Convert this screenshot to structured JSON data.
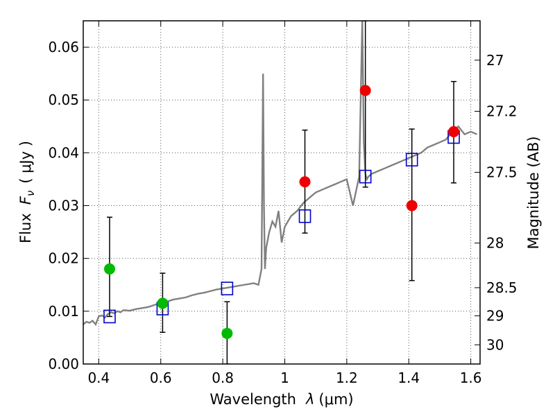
{
  "chart_data": {
    "type": "scatter",
    "xlabel_prefix": "Wavelength",
    "xlabel_symbol": "λ",
    "xlabel_unit": "(μm)",
    "ylabel_prefix": "Flux",
    "ylabel_symbol": "F",
    "ylabel_subscript": "ν",
    "ylabel_unit": "( μJy )",
    "y2label": "Magnitude (AB)",
    "xlim": [
      0.35,
      1.63
    ],
    "ylim": [
      0.0,
      0.065
    ],
    "grid": true,
    "x_ticks": [
      0.4,
      0.6,
      0.8,
      1.0,
      1.2,
      1.4,
      1.6
    ],
    "x_tick_labels": [
      "0.4",
      "0.6",
      "0.8",
      "1",
      "1.2",
      "1.4",
      "1.6"
    ],
    "y_ticks": [
      0.0,
      0.01,
      0.02,
      0.03,
      0.04,
      0.05,
      0.06
    ],
    "y_tick_labels": [
      "0.00",
      "0.01",
      "0.02",
      "0.03",
      "0.04",
      "0.05",
      "0.06"
    ],
    "y2_tick_labels": [
      "27",
      "27.2",
      "27.5",
      "28",
      "28.5",
      "29",
      "30"
    ],
    "colors": {
      "template": "#808080",
      "model": "#0000cc",
      "optical": "#00bb00",
      "nir": "#ee0000",
      "errorbar": "#000000"
    },
    "series": [
      {
        "kind": "template_spectrum",
        "x": [
          0.35,
          0.36,
          0.37,
          0.38,
          0.39,
          0.4,
          0.41,
          0.42,
          0.43,
          0.44,
          0.45,
          0.46,
          0.47,
          0.48,
          0.5,
          0.52,
          0.54,
          0.56,
          0.58,
          0.6,
          0.62,
          0.64,
          0.66,
          0.68,
          0.7,
          0.72,
          0.74,
          0.76,
          0.78,
          0.8,
          0.82,
          0.84,
          0.86,
          0.88,
          0.9,
          0.915,
          0.925,
          0.93,
          0.933,
          0.936,
          0.94,
          0.95,
          0.96,
          0.97,
          0.98,
          0.99,
          1.0,
          1.02,
          1.04,
          1.06,
          1.08,
          1.1,
          1.12,
          1.14,
          1.16,
          1.18,
          1.2,
          1.22,
          1.24,
          1.25,
          1.255,
          1.26,
          1.265,
          1.27,
          1.28,
          1.3,
          1.32,
          1.34,
          1.36,
          1.38,
          1.4,
          1.42,
          1.44,
          1.46,
          1.48,
          1.5,
          1.52,
          1.54,
          1.56,
          1.58,
          1.6,
          1.62
        ],
        "y": [
          0.0075,
          0.008,
          0.0078,
          0.0082,
          0.0075,
          0.009,
          0.0092,
          0.0088,
          0.0095,
          0.0098,
          0.0096,
          0.01,
          0.0098,
          0.0102,
          0.0101,
          0.0104,
          0.0106,
          0.0108,
          0.0112,
          0.0116,
          0.0118,
          0.0122,
          0.0124,
          0.0126,
          0.013,
          0.0133,
          0.0135,
          0.0138,
          0.0141,
          0.0143,
          0.0145,
          0.0147,
          0.0149,
          0.0151,
          0.0153,
          0.015,
          0.018,
          0.055,
          0.03,
          0.018,
          0.022,
          0.025,
          0.027,
          0.026,
          0.029,
          0.023,
          0.026,
          0.028,
          0.029,
          0.0305,
          0.0315,
          0.0325,
          0.033,
          0.0335,
          0.034,
          0.0345,
          0.035,
          0.03,
          0.0355,
          0.065,
          0.042,
          0.036,
          0.035,
          0.0355,
          0.036,
          0.0365,
          0.037,
          0.0375,
          0.038,
          0.0385,
          0.039,
          0.0395,
          0.04,
          0.041,
          0.0415,
          0.042,
          0.0425,
          0.044,
          0.045,
          0.0435,
          0.044,
          0.0435
        ]
      },
      {
        "kind": "model_photometry",
        "x": [
          0.435,
          0.606,
          0.814,
          1.065,
          1.26,
          1.41,
          1.545
        ],
        "y": [
          0.009,
          0.0105,
          0.0143,
          0.028,
          0.0355,
          0.0387,
          0.043
        ]
      },
      {
        "kind": "observed_optical",
        "x": [
          0.435,
          0.606,
          0.814
        ],
        "y": [
          0.018,
          0.0115,
          0.0058
        ],
        "err_low": [
          0.009,
          0.0055,
          0.0058
        ],
        "err_high": [
          0.0098,
          0.0057,
          0.006
        ]
      },
      {
        "kind": "observed_nir",
        "x": [
          1.065,
          1.26,
          1.41,
          1.545
        ],
        "y": [
          0.0345,
          0.0518,
          0.03,
          0.044
        ],
        "err_low": [
          0.0097,
          0.0183,
          0.0142,
          0.0097
        ],
        "err_high": [
          0.0098,
          0.0132,
          0.0145,
          0.0095
        ]
      }
    ]
  }
}
